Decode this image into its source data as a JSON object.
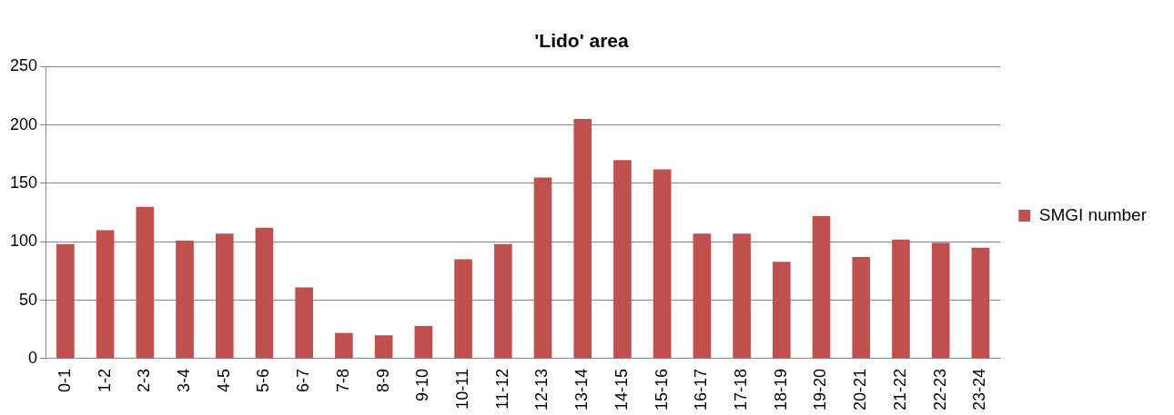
{
  "chart_data": {
    "type": "bar",
    "title": "'Lido' area",
    "categories": [
      "0-1",
      "1-2",
      "2-3",
      "3-4",
      "4-5",
      "5-6",
      "6-7",
      "7-8",
      "8-9",
      "9-10",
      "10-11",
      "11-12",
      "12-13",
      "13-14",
      "14-15",
      "15-16",
      "16-17",
      "17-18",
      "18-19",
      "19-20",
      "20-21",
      "21-22",
      "22-23",
      "23-24"
    ],
    "series": [
      {
        "name": "SMGI number",
        "color": "#c0504d",
        "values": [
          98,
          110,
          130,
          101,
          107,
          112,
          61,
          22,
          20,
          28,
          85,
          98,
          155,
          205,
          170,
          162,
          107,
          107,
          83,
          122,
          87,
          102,
          99,
          95
        ]
      }
    ],
    "ylim": [
      0,
      250
    ],
    "yticks": [
      0,
      50,
      100,
      150,
      200,
      250
    ],
    "grid": "y",
    "legend": "right"
  }
}
